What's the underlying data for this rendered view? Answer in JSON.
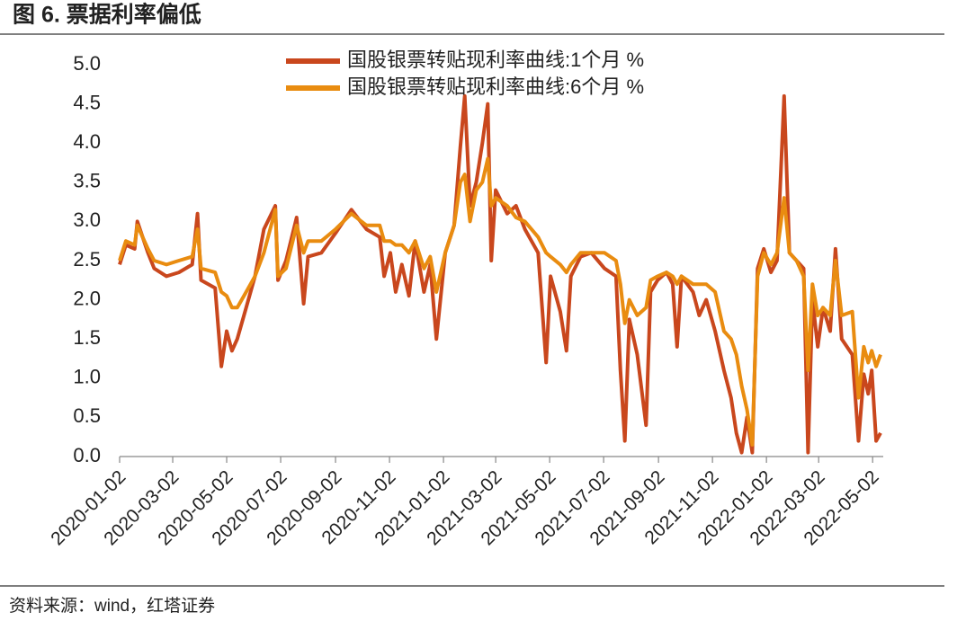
{
  "chart_data": {
    "type": "line",
    "title": "图 6. 票据利率偏低",
    "source": "资料来源：wind，红塔证券",
    "x": [
      "2020-01-02",
      "2020-01-09",
      "2020-01-19",
      "2020-01-22",
      "2020-02-03",
      "2020-02-10",
      "2020-02-24",
      "2020-03-09",
      "2020-03-24",
      "2020-03-30",
      "2020-04-03",
      "2020-04-19",
      "2020-04-26",
      "2020-05-02",
      "2020-05-08",
      "2020-05-14",
      "2020-05-24",
      "2020-06-03",
      "2020-06-13",
      "2020-06-26",
      "2020-06-29",
      "2020-07-08",
      "2020-07-20",
      "2020-07-28",
      "2020-08-02",
      "2020-08-17",
      "2020-09-02",
      "2020-09-20",
      "2020-10-07",
      "2020-10-22",
      "2020-10-27",
      "2020-11-03",
      "2020-11-09",
      "2020-11-16",
      "2020-11-24",
      "2020-12-01",
      "2020-12-11",
      "2020-12-18",
      "2020-12-25",
      "2021-01-04",
      "2021-01-14",
      "2021-01-21",
      "2021-01-26",
      "2021-02-01",
      "2021-02-08",
      "2021-02-15",
      "2021-02-21",
      "2021-02-25",
      "2021-03-02",
      "2021-03-15",
      "2021-03-25",
      "2021-04-04",
      "2021-04-19",
      "2021-04-28",
      "2021-05-03",
      "2021-05-14",
      "2021-05-21",
      "2021-05-26",
      "2021-06-06",
      "2021-06-18",
      "2021-07-03",
      "2021-07-16",
      "2021-07-21",
      "2021-07-26",
      "2021-07-31",
      "2021-08-09",
      "2021-08-19",
      "2021-08-24",
      "2021-09-01",
      "2021-09-11",
      "2021-09-18",
      "2021-09-23",
      "2021-09-28",
      "2021-10-11",
      "2021-10-18",
      "2021-10-26",
      "2021-11-05",
      "2021-11-15",
      "2021-11-23",
      "2021-11-29",
      "2021-12-05",
      "2021-12-11",
      "2021-12-17",
      "2021-12-23",
      "2021-12-30",
      "2022-01-07",
      "2022-01-14",
      "2022-01-22",
      "2022-01-28",
      "2022-02-05",
      "2022-02-13",
      "2022-02-18",
      "2022-02-23",
      "2022-03-01",
      "2022-03-07",
      "2022-03-15",
      "2022-03-21",
      "2022-03-28",
      "2022-04-09",
      "2022-04-16",
      "2022-04-22",
      "2022-04-27",
      "2022-05-01",
      "2022-05-06",
      "2022-05-11"
    ],
    "series": [
      {
        "name": "国股银票转贴现利率曲线:1个月 %",
        "color": "#c9471d",
        "values": [
          2.45,
          2.7,
          2.65,
          3.0,
          2.6,
          2.4,
          2.3,
          2.35,
          2.45,
          3.1,
          2.25,
          2.15,
          1.15,
          1.6,
          1.35,
          1.5,
          1.9,
          2.3,
          2.9,
          3.2,
          2.25,
          2.5,
          3.05,
          1.95,
          2.55,
          2.6,
          2.85,
          3.15,
          2.9,
          2.8,
          2.3,
          2.6,
          2.1,
          2.45,
          2.05,
          2.75,
          2.1,
          2.45,
          1.5,
          2.6,
          2.95,
          3.95,
          4.6,
          3.2,
          3.5,
          4.0,
          4.5,
          2.5,
          3.4,
          3.1,
          3.2,
          2.9,
          2.6,
          1.2,
          2.3,
          1.85,
          1.35,
          2.3,
          2.55,
          2.6,
          2.4,
          2.3,
          1.1,
          0.2,
          1.75,
          1.3,
          0.4,
          2.1,
          2.25,
          2.35,
          2.2,
          1.4,
          2.3,
          2.1,
          1.8,
          2.0,
          1.6,
          1.1,
          0.75,
          0.3,
          0.05,
          0.5,
          0.05,
          2.4,
          2.65,
          2.35,
          2.5,
          4.6,
          2.6,
          2.5,
          2.4,
          0.05,
          2.0,
          1.4,
          1.9,
          1.6,
          2.65,
          1.5,
          1.3,
          0.2,
          1.05,
          0.8,
          1.1,
          0.2,
          0.3
        ]
      },
      {
        "name": "国股银票转贴现利率曲线:6个月 %",
        "color": "#e98c10",
        "values": [
          2.5,
          2.75,
          2.7,
          2.95,
          2.65,
          2.5,
          2.45,
          2.5,
          2.55,
          2.9,
          2.4,
          2.35,
          2.1,
          2.05,
          1.9,
          1.9,
          2.1,
          2.3,
          2.6,
          3.15,
          2.3,
          2.4,
          2.95,
          2.6,
          2.75,
          2.75,
          2.9,
          3.1,
          2.95,
          2.95,
          2.75,
          2.75,
          2.7,
          2.7,
          2.6,
          2.75,
          2.4,
          2.55,
          2.1,
          2.6,
          2.95,
          3.5,
          3.6,
          3.0,
          3.4,
          3.5,
          3.8,
          3.2,
          3.3,
          3.2,
          3.05,
          3.0,
          2.8,
          2.6,
          2.55,
          2.45,
          2.35,
          2.45,
          2.6,
          2.6,
          2.6,
          2.5,
          2.2,
          1.7,
          2.0,
          1.8,
          1.9,
          2.25,
          2.3,
          2.35,
          2.3,
          2.2,
          2.3,
          2.2,
          2.2,
          2.2,
          2.1,
          1.6,
          1.5,
          1.3,
          0.9,
          0.6,
          0.15,
          2.3,
          2.6,
          2.45,
          2.6,
          3.3,
          2.6,
          2.5,
          2.3,
          1.1,
          2.2,
          1.8,
          1.9,
          1.8,
          2.5,
          1.8,
          1.85,
          0.75,
          1.4,
          1.2,
          1.35,
          1.15,
          1.3
        ]
      }
    ],
    "xlim": [
      "2020-01-02",
      "2022-05-14"
    ],
    "xticks": [
      "2020-01-02",
      "2020-03-02",
      "2020-05-02",
      "2020-07-02",
      "2020-09-02",
      "2020-11-02",
      "2021-01-02",
      "2021-03-02",
      "2021-05-02",
      "2021-07-02",
      "2021-09-02",
      "2021-11-02",
      "2022-01-02",
      "2022-03-02",
      "2022-05-02"
    ],
    "ylim": [
      0,
      5
    ],
    "yticks": [
      {
        "value": 0,
        "label": "0.0"
      },
      {
        "value": 0.5,
        "label": "0.5"
      },
      {
        "value": 1,
        "label": "1.0"
      },
      {
        "value": 1.5,
        "label": "1.5"
      },
      {
        "value": 2,
        "label": "2.0"
      },
      {
        "value": 2.5,
        "label": "2.5"
      },
      {
        "value": 3,
        "label": "3.0"
      },
      {
        "value": 3.5,
        "label": "3.5"
      },
      {
        "value": 4,
        "label": "4.0"
      },
      {
        "value": 4.5,
        "label": "4.5"
      },
      {
        "value": 5,
        "label": "5.0"
      }
    ],
    "grid": false,
    "legend": "top"
  }
}
